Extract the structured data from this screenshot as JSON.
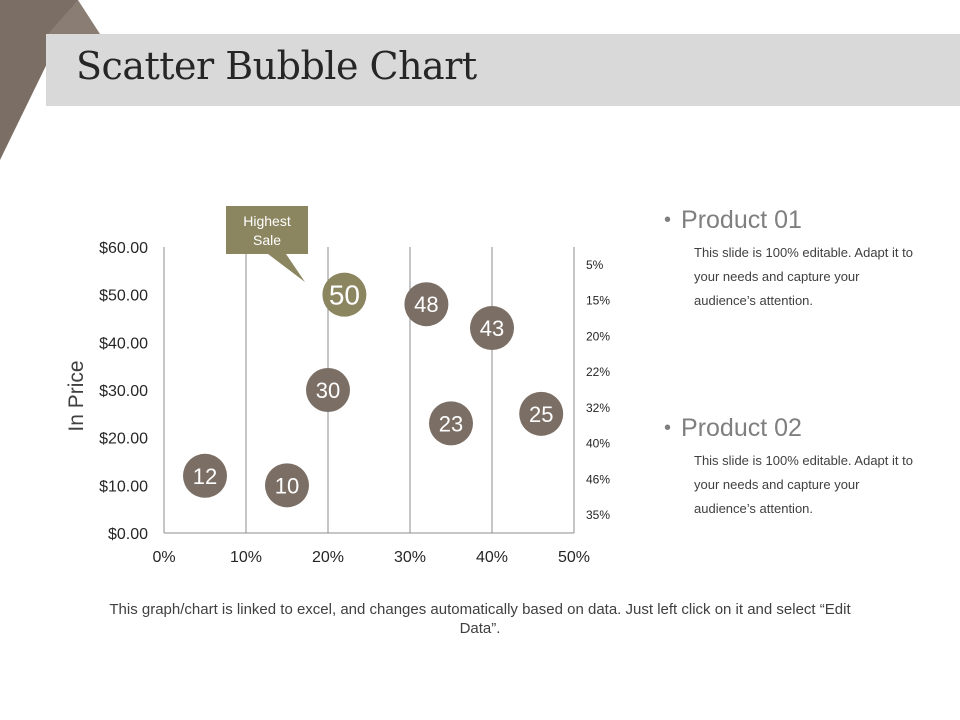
{
  "slide": {
    "title": "Scatter Bubble Chart",
    "footer": "This graph/chart is linked to excel, and changes automatically based on data. Just left click on it and select “Edit Data”."
  },
  "colors": {
    "bubble": "#7b6e65",
    "highlight": "#8c8660",
    "title_band": "#d9d9d9",
    "corner": "#7b6e65",
    "axis_text": "#262626"
  },
  "callout": {
    "line1": "Highest",
    "line2": "Sale"
  },
  "legend": [
    {
      "name": "Product 01",
      "desc": "This slide is 100% editable. Adapt it to your needs and capture your audience’s attention."
    },
    {
      "name": "Product 02",
      "desc": "This slide is 100% editable. Adapt it to your needs and capture your audience’s attention."
    }
  ],
  "chart_data": {
    "type": "scatter",
    "title": "",
    "xlabel": "",
    "ylabel": "In Price",
    "xlim": [
      0,
      50
    ],
    "ylim": [
      0,
      60
    ],
    "x_ticks": [
      "0%",
      "10%",
      "20%",
      "30%",
      "40%",
      "50%"
    ],
    "y_ticks": [
      "$0.00",
      "$10.00",
      "$20.00",
      "$30.00",
      "$40.00",
      "$50.00",
      "$60.00"
    ],
    "secondary_axis_labels": [
      "5%",
      "15%",
      "20%",
      "22%",
      "32%",
      "40%",
      "46%",
      "35%"
    ],
    "grid": "vertical",
    "points": [
      {
        "x": 5,
        "y": 12,
        "label": "12",
        "highlight": false
      },
      {
        "x": 15,
        "y": 10,
        "label": "10",
        "highlight": false
      },
      {
        "x": 20,
        "y": 30,
        "label": "30",
        "highlight": false
      },
      {
        "x": 22,
        "y": 50,
        "label": "50",
        "highlight": true
      },
      {
        "x": 32,
        "y": 48,
        "label": "48",
        "highlight": false
      },
      {
        "x": 35,
        "y": 23,
        "label": "23",
        "highlight": false
      },
      {
        "x": 40,
        "y": 43,
        "label": "43",
        "highlight": false
      },
      {
        "x": 46,
        "y": 25,
        "label": "25",
        "highlight": false
      }
    ]
  }
}
